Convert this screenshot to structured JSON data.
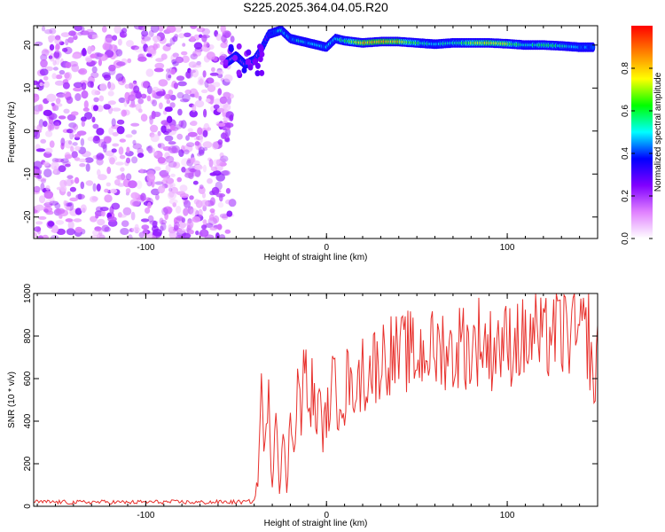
{
  "figure_title": "S225.2025.364.04.05.R20",
  "chart_data": [
    {
      "type": "heatmap",
      "title": "S225.2025.364.04.05.R20",
      "xlabel": "Height of straight line (km)",
      "ylabel": "Frequency (Hz)",
      "xlim": [
        -162,
        150
      ],
      "ylim": [
        -25,
        24.5
      ],
      "xticks": [
        -100,
        0,
        100
      ],
      "xtick_labels": [
        "-100",
        "0",
        "100"
      ],
      "yticks": [
        -20,
        -10,
        0,
        10,
        20
      ],
      "ytick_labels": [
        "-20",
        "-10",
        "0",
        "10",
        "20"
      ],
      "colorbar": {
        "label": "Normalized spectral amplitude",
        "range": [
          0.0,
          1.0
        ],
        "ticks": [
          0.0,
          0.2,
          0.4,
          0.6,
          0.8
        ],
        "tick_labels": [
          "0.0",
          "0.2",
          "0.4",
          "0.6",
          "0.8"
        ],
        "colors": [
          "#ffffff",
          "#e080ff",
          "#8000ff",
          "#0000ff",
          "#00ffff",
          "#00ff00",
          "#ffff00",
          "#ff8000",
          "#ff0000"
        ]
      },
      "noise_region": {
        "x_range": [
          -162,
          -52
        ],
        "freq_range": [
          -25,
          24.5
        ],
        "amplitude": [
          0.05,
          0.25
        ]
      },
      "ridge": [
        {
          "x": -55,
          "f": 16.0,
          "a": 0.2
        },
        {
          "x": -50,
          "f": 17.5,
          "a": 0.22
        },
        {
          "x": -45,
          "f": 15.5,
          "a": 0.25
        },
        {
          "x": -40,
          "f": 16.5,
          "a": 0.22
        },
        {
          "x": -36,
          "f": 19.0,
          "a": 0.25
        },
        {
          "x": -32,
          "f": 22.5,
          "a": 0.3
        },
        {
          "x": -25,
          "f": 23.5,
          "a": 0.5
        },
        {
          "x": -20,
          "f": 21.5,
          "a": 0.4
        },
        {
          "x": -15,
          "f": 21.0,
          "a": 0.5
        },
        {
          "x": -10,
          "f": 20.5,
          "a": 0.45
        },
        {
          "x": -5,
          "f": 20.0,
          "a": 0.5
        },
        {
          "x": 0,
          "f": 19.5,
          "a": 0.45
        },
        {
          "x": 5,
          "f": 21.5,
          "a": 0.5
        },
        {
          "x": 10,
          "f": 21.0,
          "a": 0.6
        },
        {
          "x": 20,
          "f": 20.5,
          "a": 0.8
        },
        {
          "x": 30,
          "f": 20.8,
          "a": 0.85
        },
        {
          "x": 40,
          "f": 20.8,
          "a": 0.8
        },
        {
          "x": 50,
          "f": 20.5,
          "a": 0.6
        },
        {
          "x": 60,
          "f": 20.2,
          "a": 0.5
        },
        {
          "x": 70,
          "f": 20.5,
          "a": 0.55
        },
        {
          "x": 80,
          "f": 20.5,
          "a": 0.7
        },
        {
          "x": 90,
          "f": 20.5,
          "a": 0.75
        },
        {
          "x": 100,
          "f": 20.3,
          "a": 0.7
        },
        {
          "x": 110,
          "f": 20.0,
          "a": 0.5
        },
        {
          "x": 120,
          "f": 20.0,
          "a": 0.6
        },
        {
          "x": 130,
          "f": 19.8,
          "a": 0.55
        },
        {
          "x": 140,
          "f": 19.5,
          "a": 0.45
        },
        {
          "x": 148,
          "f": 19.5,
          "a": 0.4
        }
      ]
    },
    {
      "type": "line",
      "xlabel": "Height of straight line (km)",
      "ylabel": "SNR (10 * v/v)",
      "xlim": [
        -162,
        150
      ],
      "ylim": [
        0,
        1000
      ],
      "xticks": [
        -100,
        0,
        100
      ],
      "xtick_labels": [
        "-100",
        "0",
        "100"
      ],
      "yticks": [
        0,
        200,
        400,
        600,
        800,
        1000
      ],
      "ytick_labels": [
        "0",
        "200",
        "400",
        "600",
        "800",
        "1000"
      ],
      "line_color": "#e8302c",
      "series": [
        {
          "name": "SNR",
          "x": [
            -162,
            -150,
            -140,
            -130,
            -120,
            -110,
            -100,
            -90,
            -80,
            -70,
            -60,
            -50,
            -45,
            -40,
            -38,
            -36,
            -34,
            -32,
            -30,
            -28,
            -26,
            -24,
            -22,
            -20,
            -18,
            -16,
            -14,
            -12,
            -10,
            -8,
            -6,
            -4,
            -2,
            0,
            2,
            4,
            6,
            8,
            10,
            12,
            14,
            16,
            18,
            20,
            22,
            24,
            26,
            28,
            30,
            35,
            40,
            45,
            50,
            55,
            60,
            65,
            70,
            75,
            80,
            85,
            90,
            95,
            100,
            105,
            110,
            115,
            120,
            125,
            130,
            135,
            140,
            145,
            148,
            150
          ],
          "y": [
            20,
            20,
            18,
            20,
            20,
            18,
            20,
            20,
            20,
            18,
            20,
            20,
            20,
            25,
            120,
            550,
            250,
            480,
            100,
            500,
            80,
            350,
            60,
            420,
            300,
            600,
            420,
            700,
            400,
            560,
            420,
            480,
            350,
            420,
            500,
            600,
            450,
            580,
            480,
            650,
            500,
            620,
            550,
            660,
            580,
            640,
            680,
            650,
            700,
            720,
            700,
            730,
            690,
            750,
            720,
            760,
            700,
            780,
            720,
            800,
            730,
            780,
            750,
            800,
            760,
            820,
            750,
            850,
            800,
            830,
            780,
            820,
            500,
            850
          ]
        }
      ]
    }
  ]
}
